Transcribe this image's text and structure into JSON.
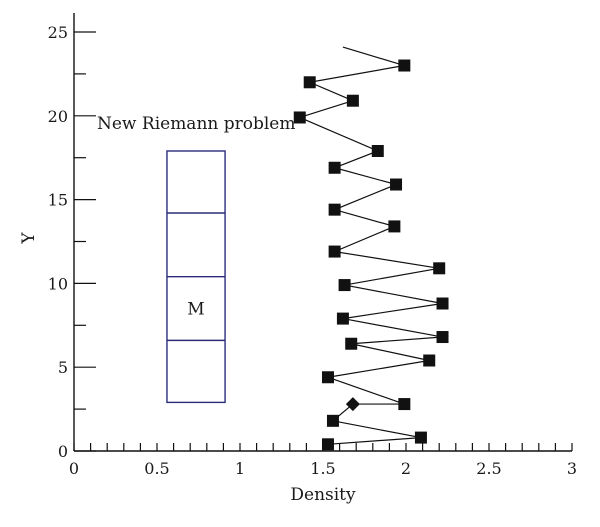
{
  "chart_data": {
    "type": "line",
    "xlabel": "Density",
    "ylabel": "Y",
    "xlim": [
      0,
      3
    ],
    "ylim": [
      0,
      25
    ],
    "x_ticks": [
      0,
      0.5,
      1,
      1.5,
      2,
      2.5,
      3
    ],
    "x_tick_labels": [
      "0",
      "0.5",
      "1",
      "1.5",
      "2",
      "2.5",
      "3"
    ],
    "y_ticks": [
      0,
      5,
      10,
      15,
      20,
      25
    ],
    "y_tick_labels": [
      "0",
      "5",
      "10",
      "15",
      "20",
      "25"
    ],
    "grid": false,
    "series": [
      {
        "points": [
          {
            "x": 1.53,
            "y": 0.4,
            "marker": "square"
          },
          {
            "x": 2.09,
            "y": 0.8,
            "marker": "square"
          },
          {
            "x": 1.56,
            "y": 1.8,
            "marker": "square"
          },
          {
            "x": 1.68,
            "y": 2.8,
            "marker": "diamond"
          },
          {
            "x": 1.99,
            "y": 2.8,
            "marker": "square"
          },
          {
            "x": 1.53,
            "y": 4.4,
            "marker": "square"
          },
          {
            "x": 2.14,
            "y": 5.4,
            "marker": "square"
          },
          {
            "x": 1.67,
            "y": 6.4,
            "marker": "square"
          },
          {
            "x": 2.22,
            "y": 6.8,
            "marker": "square"
          },
          {
            "x": 1.62,
            "y": 7.9,
            "marker": "square"
          },
          {
            "x": 2.22,
            "y": 8.8,
            "marker": "square"
          },
          {
            "x": 1.63,
            "y": 9.9,
            "marker": "square"
          },
          {
            "x": 2.2,
            "y": 10.9,
            "marker": "square"
          },
          {
            "x": 1.57,
            "y": 11.9,
            "marker": "square"
          },
          {
            "x": 1.93,
            "y": 13.4,
            "marker": "square"
          },
          {
            "x": 1.57,
            "y": 14.4,
            "marker": "square"
          },
          {
            "x": 1.94,
            "y": 15.9,
            "marker": "square"
          },
          {
            "x": 1.57,
            "y": 16.9,
            "marker": "square"
          },
          {
            "x": 1.83,
            "y": 17.9,
            "marker": "square"
          },
          {
            "x": 1.36,
            "y": 19.9,
            "marker": "square"
          },
          {
            "x": 1.68,
            "y": 20.9,
            "marker": "square"
          },
          {
            "x": 1.42,
            "y": 22.0,
            "marker": "square"
          },
          {
            "x": 1.99,
            "y": 23.0,
            "marker": "square"
          },
          {
            "x": 1.62,
            "y": 24.1,
            "marker": "none"
          }
        ]
      }
    ],
    "annotation": {
      "text": "New Riemann problem",
      "box": {
        "x_range": [
          0.56,
          0.91
        ],
        "y_range": [
          2.9,
          17.9
        ],
        "dividers_y": [
          6.6,
          10.4,
          14.2
        ],
        "cell_label": "M",
        "cell_label_y": 8.5
      }
    }
  }
}
